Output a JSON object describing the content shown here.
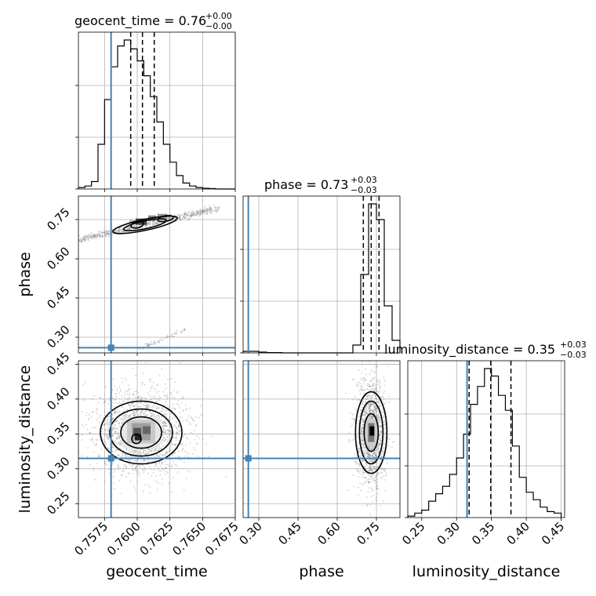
{
  "chart_data": {
    "type": "corner",
    "parameters": [
      {
        "name": "geocent_time",
        "xlabel": "geocent_time",
        "range": [
          0.7555,
          0.7675
        ],
        "ticks": [
          "0.7575",
          "0.7600",
          "0.7625",
          "0.7650",
          "0.7675"
        ],
        "tick_values": [
          0.7575,
          0.76,
          0.7625,
          0.765,
          0.7675
        ],
        "truth": 0.758,
        "title": {
          "base": "geocent_time = 0.76",
          "sup": "+0.00",
          "sub": "−0.00"
        },
        "quantiles": [
          0.7595,
          0.7604,
          0.7613
        ],
        "hist_bins": [
          0.7555,
          0.756,
          0.7565,
          0.757,
          0.7575,
          0.758,
          0.7585,
          0.759,
          0.7595,
          0.76,
          0.7605,
          0.761,
          0.7615,
          0.762,
          0.7625,
          0.763,
          0.7635,
          0.764,
          0.7645,
          0.765,
          0.7655,
          0.766,
          0.7665,
          0.767,
          0.7675
        ],
        "hist_counts": [
          1,
          2,
          5,
          30,
          60,
          82,
          96,
          100,
          94,
          86,
          76,
          62,
          45,
          30,
          18,
          9,
          4,
          2,
          1,
          0.5,
          0.3,
          0,
          0,
          0
        ]
      },
      {
        "name": "phase",
        "xlabel": "phase",
        "ylabel": "phase",
        "range": [
          0.24,
          0.84
        ],
        "ticks": [
          "0.30",
          "0.45",
          "0.60",
          "0.75"
        ],
        "tick_values": [
          0.3,
          0.45,
          0.6,
          0.75
        ],
        "truth": 0.26,
        "title": {
          "base": "phase = 0.73",
          "sup": "+0.03",
          "sub": "−0.03"
        },
        "quantiles": [
          0.7,
          0.73,
          0.76
        ],
        "hist_bins": [
          0.24,
          0.27,
          0.3,
          0.33,
          0.36,
          0.39,
          0.42,
          0.45,
          0.48,
          0.51,
          0.54,
          0.57,
          0.6,
          0.63,
          0.66,
          0.69,
          0.72,
          0.75,
          0.78,
          0.81,
          0.84
        ],
        "hist_counts": [
          1,
          1,
          0.5,
          0.2,
          0.2,
          0,
          0,
          0,
          0,
          0,
          0,
          0,
          0,
          0,
          5,
          50,
          95,
          85,
          30,
          8
        ]
      },
      {
        "name": "luminosity_distance",
        "xlabel": "luminosity_distance",
        "ylabel": "luminosity_distance",
        "range": [
          0.23,
          0.455
        ],
        "ticks": [
          "0.25",
          "0.30",
          "0.35",
          "0.40",
          "0.45"
        ],
        "tick_values": [
          0.25,
          0.3,
          0.35,
          0.4,
          0.45
        ],
        "truth": 0.315,
        "title": {
          "base": "luminosity_distance = 0.35",
          "sup": "+0.03",
          "sub": "−0.03"
        },
        "quantiles": [
          0.318,
          0.349,
          0.378
        ],
        "hist_bins": [
          0.23,
          0.24,
          0.25,
          0.26,
          0.27,
          0.28,
          0.29,
          0.3,
          0.31,
          0.32,
          0.33,
          0.34,
          0.35,
          0.36,
          0.37,
          0.38,
          0.39,
          0.4,
          0.41,
          0.42,
          0.43,
          0.44,
          0.45
        ],
        "hist_counts": [
          1,
          3,
          5,
          11,
          16,
          21,
          29,
          40,
          56,
          76,
          88,
          100,
          95,
          82,
          72,
          48,
          27,
          17,
          12,
          7,
          4,
          3
        ]
      }
    ],
    "pairs": [
      {
        "x": "geocent_time",
        "y": "phase",
        "mode_x": 0.7606,
        "mode_y": 0.73,
        "secondary_blob": {
          "from": [
            0.7597,
            0.245
          ],
          "to": [
            0.7637,
            0.33
          ]
        }
      },
      {
        "x": "geocent_time",
        "y": "luminosity_distance",
        "mode_x": 0.7603,
        "mode_y": 0.352
      },
      {
        "x": "phase",
        "y": "luminosity_distance",
        "mode_x": 0.73,
        "mode_y": 0.352
      }
    ],
    "grid": true,
    "truth_color": "#4682b4"
  }
}
